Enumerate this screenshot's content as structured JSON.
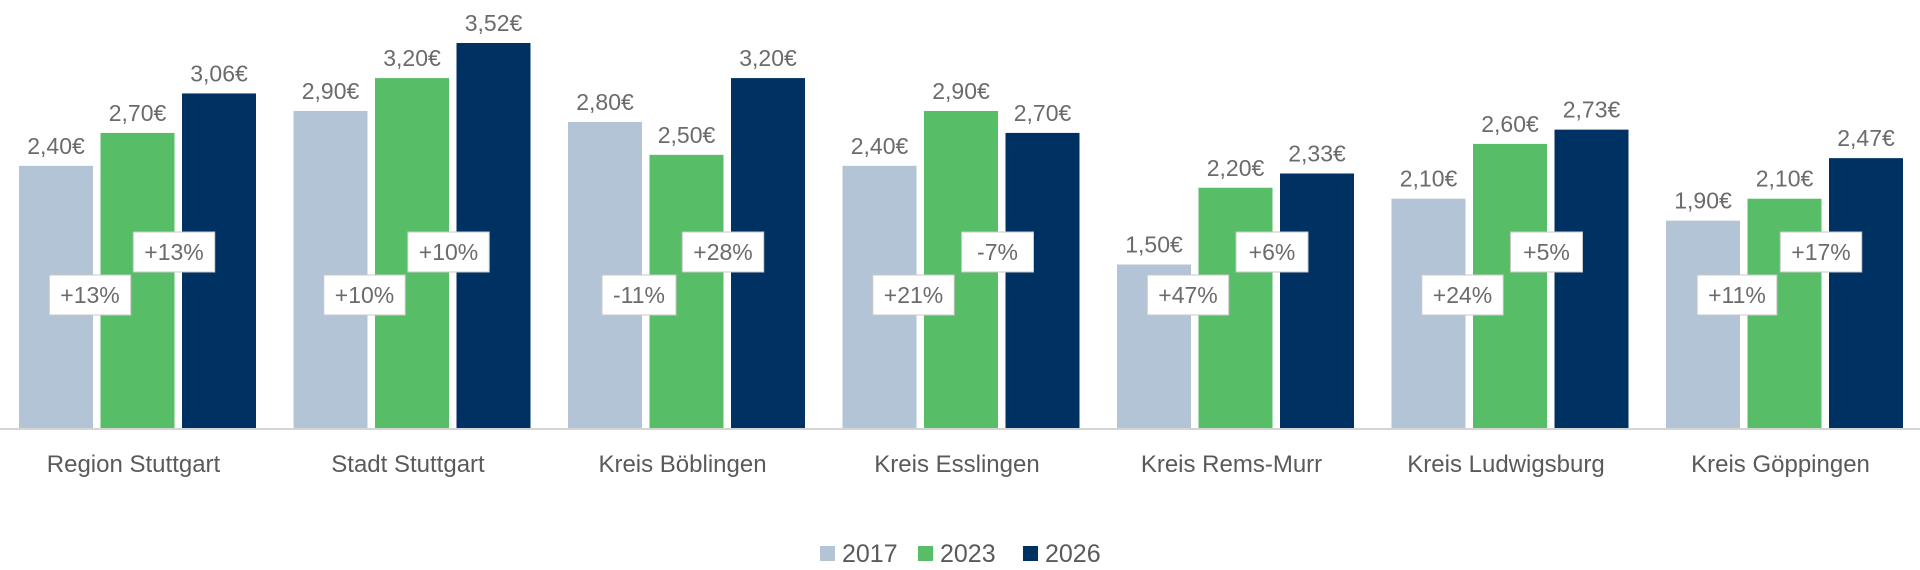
{
  "chart_data": {
    "type": "bar",
    "title": "",
    "xlabel": "",
    "ylabel": "",
    "ylim": [
      0,
      3.52
    ],
    "grid": false,
    "legend_position": "bottom-center",
    "categories": [
      "Region Stuttgart",
      "Stadt Stuttgart",
      "Kreis Böblingen",
      "Kreis Esslingen",
      "Kreis Rems-Murr",
      "Kreis Ludwigsburg",
      "Kreis Göppingen"
    ],
    "series": [
      {
        "name": "2017",
        "color": "#b2c4d6",
        "values": [
          2.4,
          2.9,
          2.8,
          2.4,
          1.5,
          2.1,
          1.9
        ],
        "labels": [
          "2,40€",
          "2,90€",
          "2,80€",
          "2,40€",
          "1,50€",
          "2,10€",
          "1,90€"
        ]
      },
      {
        "name": "2023",
        "color": "#57bd66",
        "values": [
          2.7,
          3.2,
          2.5,
          2.9,
          2.2,
          2.6,
          2.1
        ],
        "labels": [
          "2,70€",
          "3,20€",
          "2,50€",
          "2,90€",
          "2,20€",
          "2,60€",
          "2,10€"
        ]
      },
      {
        "name": "2026",
        "color": "#003163",
        "values": [
          3.06,
          3.52,
          3.2,
          2.7,
          2.33,
          2.73,
          2.47
        ],
        "labels": [
          "3,06€",
          "3,52€",
          "3,20€",
          "2,70€",
          "2,33€",
          "2,73€",
          "2,47€"
        ]
      }
    ],
    "changes_2017_2023": [
      "+13%",
      "+10%",
      "-11%",
      "+21%",
      "+47%",
      "+24%",
      "+11%"
    ],
    "changes_2023_2026": [
      "+13%",
      "+10%",
      "+28%",
      "-7%",
      "+6%",
      "+5%",
      "+17%"
    ]
  }
}
